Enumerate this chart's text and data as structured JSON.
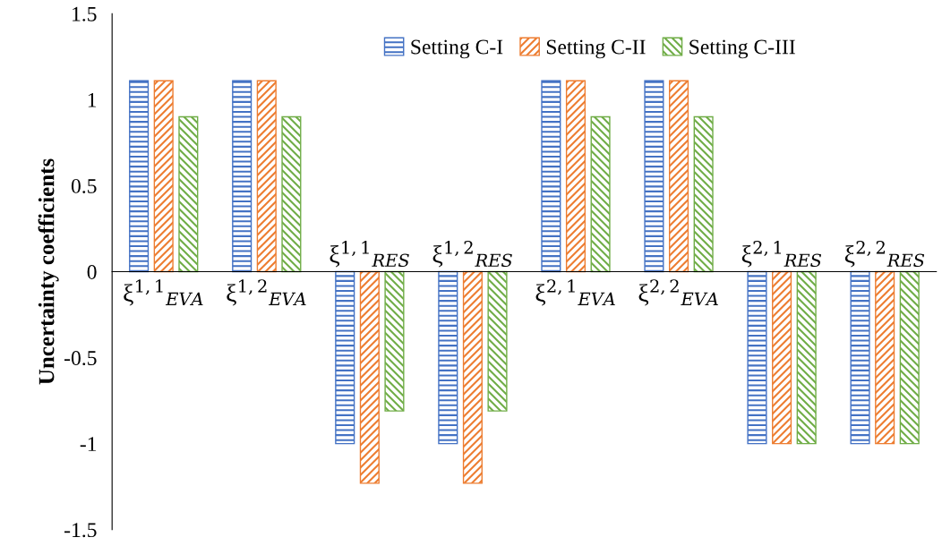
{
  "chart_data": {
    "type": "bar",
    "ylabel": "Uncertainty coefficients",
    "categories": [
      "ξ$^{1,1}$$_{EVA}$",
      "ξ$^{1,2}$$_{EVA}$",
      "ξ$^{1,1}$$_{RES}$",
      "ξ$^{1,2}$$_{RES}$",
      "ξ$^{2,1}$$_{EVA}$",
      "ξ$^{2,2}$$_{EVA}$",
      "ξ$^{2,1}$$_{RES}$",
      "ξ$^{2,2}$$_{RES}$"
    ],
    "series": [
      {
        "name": "Setting C-I",
        "color": "#4472c4",
        "values": [
          1.11,
          1.11,
          -1,
          -1,
          1.11,
          1.11,
          -1,
          -1
        ]
      },
      {
        "name": "Setting C-II",
        "color": "#ed7d31",
        "values": [
          1.11,
          1.11,
          -1.23,
          -1.23,
          1.11,
          1.11,
          -1,
          -1
        ]
      },
      {
        "name": "Setting C-III",
        "color": "#70ad47",
        "values": [
          0.9,
          0.9,
          -0.81,
          -0.81,
          0.9,
          0.9,
          -1,
          -1
        ]
      }
    ],
    "ylim": [
      -1.5,
      1.5
    ],
    "yticks": [
      -1.5,
      -1,
      -0.5,
      0,
      0.5,
      1,
      1.5
    ],
    "grid": false,
    "legend": "top"
  }
}
